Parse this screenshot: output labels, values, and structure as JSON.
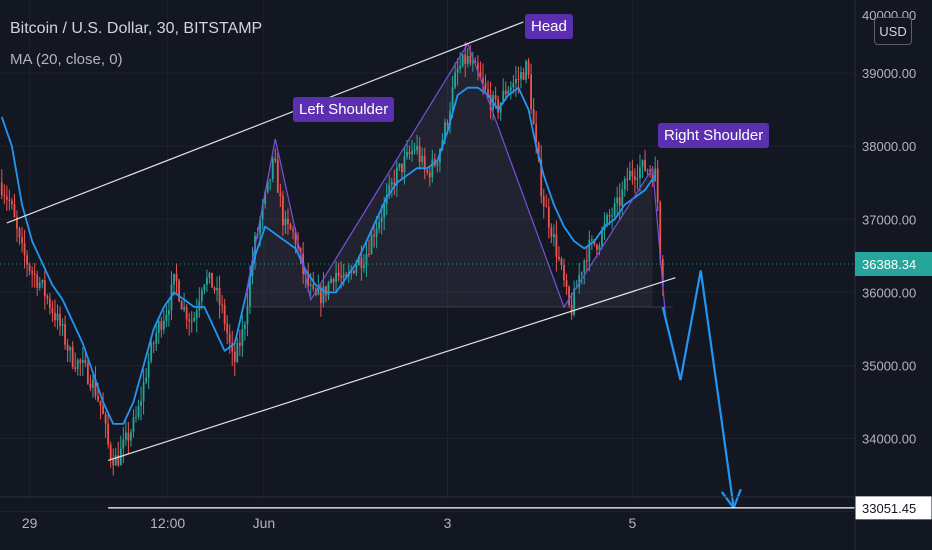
{
  "header": {
    "title": "Bitcoin / U.S. Dollar, 30, BITSTAMP",
    "indicator": "MA (20, close, 0)"
  },
  "currency_button": "USD",
  "annotations": {
    "left_shoulder": "Left Shoulder",
    "head": "Head",
    "right_shoulder": "Right Shoulder"
  },
  "chart_data": {
    "type": "line",
    "title": "Bitcoin / U.S. Dollar, 30, BITSTAMP",
    "xlabel": "",
    "ylabel": "",
    "ylim": [
      33200,
      40000
    ],
    "y_ticks": [
      33000,
      34000,
      35000,
      36000,
      37000,
      38000,
      39000
    ],
    "y_tick_labels": [
      "34000.00",
      "35000.00",
      "36000.00",
      "37000.00",
      "38000.00",
      "39000.00"
    ],
    "top_clipped_label": "40000.00",
    "x_tick_labels": [
      {
        "label": "29",
        "t": 7
      },
      {
        "label": "12:00",
        "t": 61.5
      },
      {
        "label": "Jun",
        "t": 99.5
      },
      {
        "label": "3",
        "t": 172
      },
      {
        "label": "5",
        "t": 245
      }
    ],
    "x_range": [
      -4.7,
      332.9
    ],
    "current_price": {
      "label": "36388.34",
      "value": 36388.34,
      "color": "#26a69a"
    },
    "target_price": {
      "label": "33051.45",
      "value": 33051.45
    },
    "price_series": {
      "name": "",
      "points": [
        [
          -4,
          37500
        ],
        [
          0,
          37200
        ],
        [
          4,
          36600
        ],
        [
          8,
          36300
        ],
        [
          12,
          36100
        ],
        [
          16,
          35800
        ],
        [
          20,
          35500
        ],
        [
          24,
          35100
        ],
        [
          28,
          35000
        ],
        [
          32,
          34800
        ],
        [
          36,
          34400
        ],
        [
          39,
          33800
        ],
        [
          42,
          33700
        ],
        [
          46,
          34000
        ],
        [
          50,
          34300
        ],
        [
          54,
          35000
        ],
        [
          58,
          35500
        ],
        [
          62,
          35800
        ],
        [
          65,
          36200
        ],
        [
          68,
          35800
        ],
        [
          72,
          35600
        ],
        [
          76,
          36200
        ],
        [
          80,
          36100
        ],
        [
          84,
          35700
        ],
        [
          88,
          35000
        ],
        [
          92,
          35500
        ],
        [
          96,
          36600
        ],
        [
          100,
          37200
        ],
        [
          104,
          37800
        ],
        [
          108,
          36900
        ],
        [
          112,
          36800
        ],
        [
          116,
          36200
        ],
        [
          120,
          35900
        ],
        [
          124,
          36000
        ],
        [
          128,
          36300
        ],
        [
          132,
          36100
        ],
        [
          136,
          36400
        ],
        [
          140,
          36500
        ],
        [
          144,
          36900
        ],
        [
          148,
          37200
        ],
        [
          152,
          37600
        ],
        [
          156,
          37800
        ],
        [
          160,
          38000
        ],
        [
          164,
          37600
        ],
        [
          168,
          37800
        ],
        [
          172,
          38300
        ],
        [
          176,
          39000
        ],
        [
          180,
          39200
        ],
        [
          184,
          39000
        ],
        [
          188,
          38700
        ],
        [
          192,
          38500
        ],
        [
          196,
          38800
        ],
        [
          200,
          38900
        ],
        [
          204,
          39100
        ],
        [
          207,
          38100
        ],
        [
          210,
          37300
        ],
        [
          214,
          36800
        ],
        [
          218,
          36200
        ],
        [
          221,
          35700
        ],
        [
          225,
          36300
        ],
        [
          228,
          36600
        ],
        [
          232,
          36700
        ],
        [
          236,
          37000
        ],
        [
          240,
          37200
        ],
        [
          244,
          37600
        ],
        [
          248,
          37700
        ],
        [
          252,
          37700
        ],
        [
          255,
          37600
        ],
        [
          257,
          36200
        ]
      ]
    },
    "ma_series": {
      "name": "MA (20, close, 0)",
      "color": "#2196f3",
      "points": [
        [
          -4,
          38400
        ],
        [
          0,
          38000
        ],
        [
          4,
          37200
        ],
        [
          8,
          36700
        ],
        [
          12,
          36400
        ],
        [
          16,
          36100
        ],
        [
          20,
          35900
        ],
        [
          24,
          35600
        ],
        [
          28,
          35300
        ],
        [
          32,
          34900
        ],
        [
          36,
          34500
        ],
        [
          40,
          34200
        ],
        [
          44,
          34200
        ],
        [
          48,
          34500
        ],
        [
          52,
          35000
        ],
        [
          56,
          35500
        ],
        [
          60,
          35800
        ],
        [
          64,
          36000
        ],
        [
          68,
          35900
        ],
        [
          72,
          35800
        ],
        [
          76,
          35800
        ],
        [
          80,
          35500
        ],
        [
          84,
          35200
        ],
        [
          88,
          35300
        ],
        [
          92,
          35900
        ],
        [
          96,
          36500
        ],
        [
          100,
          36900
        ],
        [
          104,
          36800
        ],
        [
          108,
          36700
        ],
        [
          112,
          36600
        ],
        [
          116,
          36300
        ],
        [
          120,
          36100
        ],
        [
          124,
          36000
        ],
        [
          128,
          36000
        ],
        [
          132,
          36200
        ],
        [
          136,
          36400
        ],
        [
          140,
          36700
        ],
        [
          144,
          37000
        ],
        [
          148,
          37300
        ],
        [
          152,
          37500
        ],
        [
          156,
          37600
        ],
        [
          160,
          37700
        ],
        [
          164,
          37700
        ],
        [
          168,
          37800
        ],
        [
          172,
          38200
        ],
        [
          176,
          38700
        ],
        [
          180,
          38800
        ],
        [
          184,
          38800
        ],
        [
          188,
          38700
        ],
        [
          192,
          38500
        ],
        [
          196,
          38700
        ],
        [
          200,
          38800
        ],
        [
          204,
          38500
        ],
        [
          207,
          38000
        ],
        [
          210,
          37600
        ],
        [
          214,
          37200
        ],
        [
          218,
          36900
        ],
        [
          222,
          36700
        ],
        [
          226,
          36600
        ],
        [
          230,
          36700
        ],
        [
          234,
          36900
        ],
        [
          238,
          37000
        ],
        [
          242,
          37200
        ],
        [
          246,
          37300
        ],
        [
          250,
          37400
        ],
        [
          254,
          37600
        ]
      ]
    },
    "pattern_series": {
      "name": "Head and Shoulders",
      "color": "#7b4fd8",
      "points": [
        [
          92,
          35900
        ],
        [
          104,
          38100
        ],
        [
          118,
          35900
        ],
        [
          180,
          39400
        ],
        [
          218,
          35800
        ],
        [
          253,
          37700
        ],
        [
          258,
          35700
        ]
      ]
    },
    "neckline": {
      "start": [
        92,
        35800
      ],
      "end": [
        261,
        35800
      ]
    },
    "channel_upper": {
      "start": [
        -2,
        36950
      ],
      "end": [
        202,
        39700
      ]
    },
    "channel_lower": {
      "start": [
        38,
        33700
      ],
      "end": [
        262,
        36200
      ]
    },
    "projection": {
      "color": "#2196f3",
      "points": [
        [
          257,
          35800
        ],
        [
          264,
          34800
        ],
        [
          272,
          36300
        ],
        [
          285,
          33050
        ]
      ]
    },
    "target_line": {
      "start": [
        38,
        33051.45
      ],
      "end": [
        333,
        33051.45
      ]
    }
  }
}
